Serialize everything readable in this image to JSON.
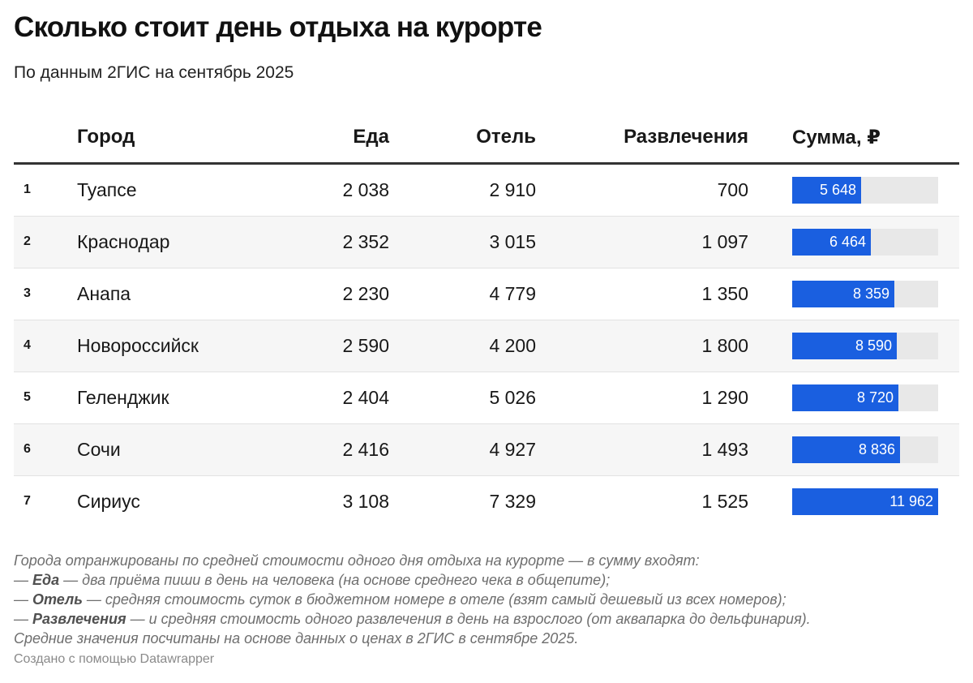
{
  "title": "Сколько стоит день отдыха на курорте",
  "subtitle": "По данным 2ГИС на сентябрь 2025",
  "headers": {
    "city": "Город",
    "food": "Еда",
    "hotel": "Отель",
    "fun": "Развлечения",
    "sum": "Сумма, ₽"
  },
  "colors": {
    "bar": "#1a5fe0",
    "bar_bg": "#e8e8e8"
  },
  "chart_data": {
    "type": "table",
    "columns": [
      "Город",
      "Еда",
      "Отель",
      "Развлечения",
      "Сумма, ₽"
    ],
    "bar_max": 11962,
    "rows": [
      {
        "rank": "1",
        "city": "Туапсе",
        "food": "2 038",
        "hotel": "2 910",
        "fun": "700",
        "sum_label": "5 648",
        "sum": 5648
      },
      {
        "rank": "2",
        "city": "Краснодар",
        "food": "2 352",
        "hotel": "3 015",
        "fun": "1 097",
        "sum_label": "6 464",
        "sum": 6464
      },
      {
        "rank": "3",
        "city": "Анапа",
        "food": "2 230",
        "hotel": "4 779",
        "fun": "1 350",
        "sum_label": "8 359",
        "sum": 8359
      },
      {
        "rank": "4",
        "city": "Новороссийск",
        "food": "2 590",
        "hotel": "4 200",
        "fun": "1 800",
        "sum_label": "8 590",
        "sum": 8590
      },
      {
        "rank": "5",
        "city": "Геленджик",
        "food": "2 404",
        "hotel": "5 026",
        "fun": "1 290",
        "sum_label": "8 720",
        "sum": 8720
      },
      {
        "rank": "6",
        "city": "Сочи",
        "food": "2 416",
        "hotel": "4 927",
        "fun": "1 493",
        "sum_label": "8 836",
        "sum": 8836
      },
      {
        "rank": "7",
        "city": "Сириус",
        "food": "3 108",
        "hotel": "7 329",
        "fun": "1 525",
        "sum_label": "11 962",
        "sum": 11962
      }
    ]
  },
  "notes": {
    "intro": "Города отранжированы по средней стоимости одного дня отдыха на курорте — в сумму входят:",
    "dash": "—",
    "food_term": "Еда",
    "food_text": " — два приёма пиши в день на человека (на основе среднего чека в общепите);",
    "hotel_term": "Отель",
    "hotel_text": " — средняя стоимость суток в бюджетном номере в отеле (взят самый дешевый из всех номеров);",
    "fun_term": "Развлечения",
    "fun_text": " — и средняя стоимость одного развлечения в день на взрослого (от аквапарка до дельфинария).",
    "outro": "Средние значения посчитаны на основе данных о ценах в 2ГИС в сентябре 2025."
  },
  "credit": "Создано с помощью Datawrapper"
}
